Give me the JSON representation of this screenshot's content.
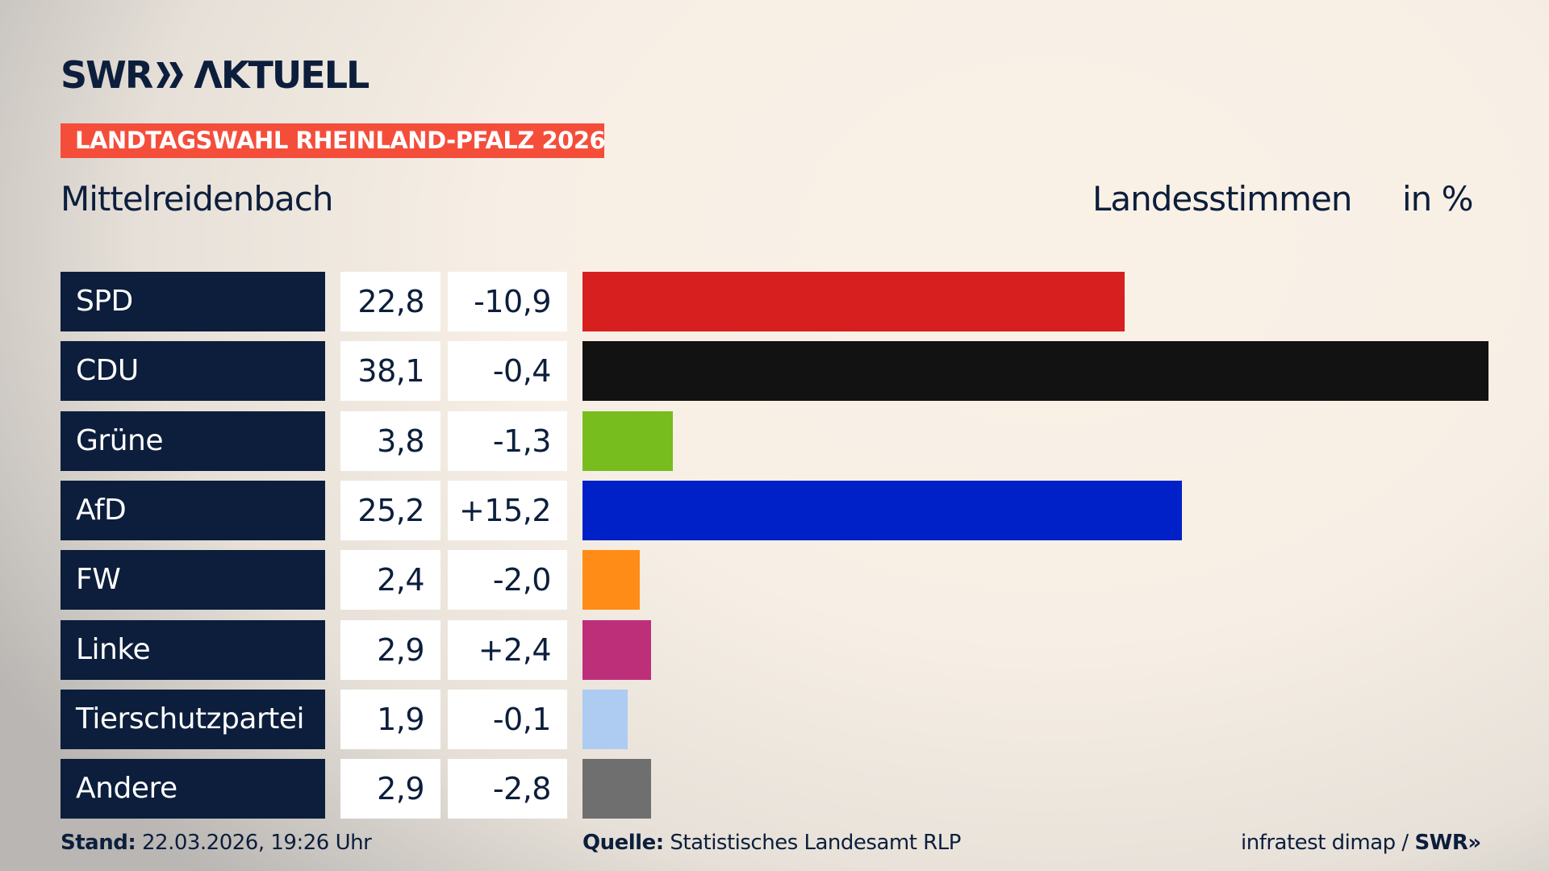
{
  "logo": {
    "text": "SWR AKTUELL"
  },
  "banner": "LANDTAGSWAHL RHEINLAND-PFALZ 2026",
  "location": "Mittelreidenbach",
  "measure": "Landesstimmen",
  "unit": "in %",
  "chart_data": {
    "type": "bar",
    "orientation": "horizontal",
    "categories": [
      "SPD",
      "CDU",
      "Grüne",
      "AfD",
      "FW",
      "Linke",
      "Tierschutzpartei",
      "Andere"
    ],
    "values": [
      22.8,
      38.1,
      3.8,
      25.2,
      2.4,
      2.9,
      1.9,
      2.9
    ],
    "value_labels": [
      "22,8",
      "38,1",
      "3,8",
      "25,2",
      "2,4",
      "2,9",
      "1,9",
      "2,9"
    ],
    "diff_labels": [
      "-10,9",
      "-0,4",
      "-1,3",
      "+15,2",
      "-2,0",
      "+2,4",
      "-0,1",
      "-2,8"
    ],
    "colors": [
      "#d81f20",
      "#121212",
      "#77bd1d",
      "#0021c8",
      "#ff8c16",
      "#be2f7a",
      "#aecbf2",
      "#6f6f6f"
    ],
    "xlim": [
      0,
      38.1
    ]
  },
  "footer": {
    "stand_label": "Stand:",
    "stand_value": " 22.03.2026, 19:26 Uhr",
    "source_label": "Quelle:",
    "source_value": " Statistisches Landesamt RLP",
    "credit": "infratest dimap / ",
    "credit_brand": "SWR"
  }
}
